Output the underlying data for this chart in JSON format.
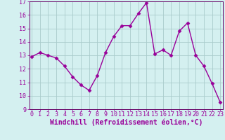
{
  "x": [
    0,
    1,
    2,
    3,
    4,
    5,
    6,
    7,
    8,
    9,
    10,
    11,
    12,
    13,
    14,
    15,
    16,
    17,
    18,
    19,
    20,
    21,
    22,
    23
  ],
  "y": [
    12.9,
    13.2,
    13.0,
    12.8,
    12.2,
    11.4,
    10.8,
    10.4,
    11.5,
    13.2,
    14.4,
    15.2,
    15.2,
    16.1,
    16.9,
    13.1,
    13.4,
    13.0,
    14.8,
    15.4,
    13.0,
    12.2,
    10.9,
    9.5
  ],
  "line_color": "#990099",
  "marker": "D",
  "markersize": 2.5,
  "linewidth": 1.0,
  "bg_color": "#d4f0f0",
  "grid_color": "#aacccc",
  "xlabel": "Windchill (Refroidissement éolien,°C)",
  "xlabel_fontsize": 7,
  "tick_fontsize": 6,
  "ylim": [
    9,
    17
  ],
  "yticks": [
    9,
    10,
    11,
    12,
    13,
    14,
    15,
    16,
    17
  ],
  "xticks": [
    0,
    1,
    2,
    3,
    4,
    5,
    6,
    7,
    8,
    9,
    10,
    11,
    12,
    13,
    14,
    15,
    16,
    17,
    18,
    19,
    20,
    21,
    22,
    23
  ],
  "spine_color": "#660066"
}
